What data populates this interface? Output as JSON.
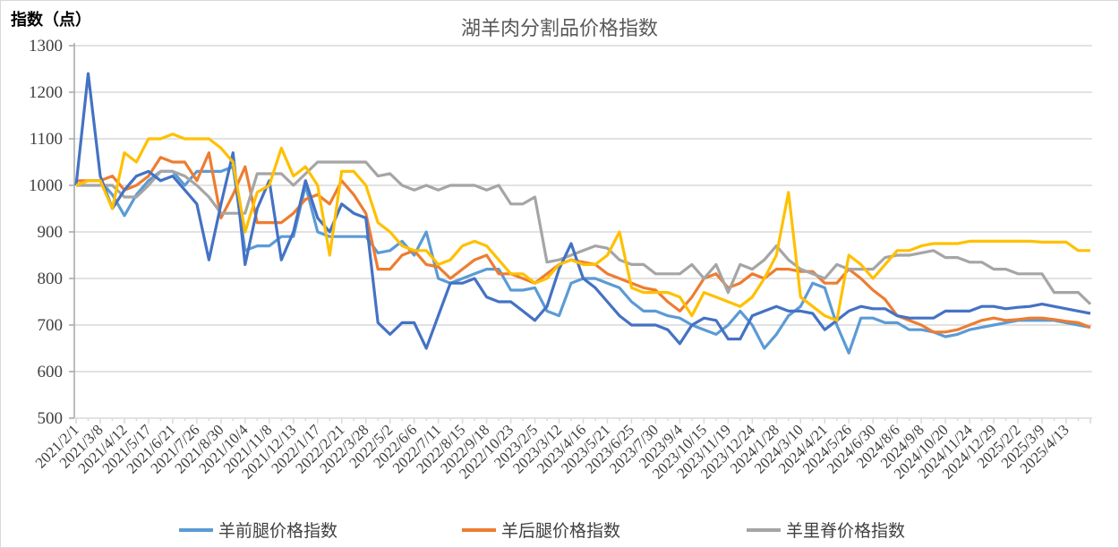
{
  "chart_data": {
    "type": "line",
    "title": "湖羊肉分割品价格指数",
    "ylabel": "指数（点）",
    "ylim": [
      500,
      1300
    ],
    "yticks": [
      500,
      600,
      700,
      800,
      900,
      1000,
      1100,
      1200,
      1300
    ],
    "grid": true,
    "legend_position": "bottom",
    "x_tick_labels": [
      "2021/2/1",
      "2021/3/8",
      "2021/4/12",
      "2021/5/17",
      "2021/6/21",
      "2021/7/26",
      "2021/8/30",
      "2021/10/4",
      "2021/11/8",
      "2021/12/13",
      "2022/1/17",
      "2022/2/21",
      "2022/3/28",
      "2022/5/2",
      "2022/6/6",
      "2022/7/11",
      "2022/8/15",
      "2022/9/18",
      "2022/10/23",
      "2023/2/5",
      "2023/3/12",
      "2023/4/16",
      "2023/5/21",
      "2023/6/25",
      "2023/7/30",
      "2023/9/4",
      "2023/10/15",
      "2023/11/19",
      "2023/12/24",
      "2024/1/28",
      "2024/3/10",
      "2024/4/21",
      "2024/5/26",
      "2024/6/30",
      "2024/8/6",
      "2024/9/8",
      "2024/10/20",
      "2024/11/24",
      "2024/12/29",
      "2025/2/2",
      "2025/3/9",
      "2025/4/13"
    ],
    "series": [
      {
        "name": "羊前腿价格指数",
        "color": "#5B9BD5",
        "in_legend": true,
        "values": [
          1000,
          1010,
          1010,
          980,
          935,
          980,
          1010,
          1030,
          1030,
          1000,
          1030,
          1030,
          1030,
          1040,
          860,
          870,
          870,
          890,
          890,
          1000,
          900,
          890,
          890,
          890,
          890,
          855,
          860,
          880,
          850,
          900,
          800,
          790,
          800,
          810,
          820,
          820,
          775,
          775,
          780,
          730,
          720,
          790,
          800,
          800,
          790,
          780,
          750,
          730,
          730,
          720,
          715,
          700,
          690,
          680,
          700,
          730,
          700,
          650,
          680,
          720,
          740,
          790,
          780,
          700,
          640,
          715,
          715,
          705,
          705,
          690,
          690,
          685,
          675,
          680,
          690,
          695,
          700,
          705,
          710,
          710,
          710,
          710,
          705,
          700,
          695
        ]
      },
      {
        "name": "羊后腿价格指数",
        "color": "#ED7D31",
        "in_legend": true,
        "values": [
          1010,
          1010,
          1010,
          1020,
          990,
          1000,
          1020,
          1060,
          1050,
          1050,
          1010,
          1070,
          930,
          980,
          1040,
          920,
          920,
          920,
          940,
          970,
          980,
          960,
          1010,
          980,
          940,
          820,
          820,
          850,
          860,
          830,
          825,
          800,
          820,
          840,
          850,
          810,
          810,
          800,
          790,
          810,
          830,
          840,
          835,
          830,
          810,
          800,
          790,
          780,
          775,
          750,
          730,
          760,
          800,
          810,
          780,
          790,
          810,
          800,
          820,
          820,
          815,
          815,
          790,
          790,
          820,
          800,
          775,
          755,
          720,
          710,
          700,
          685,
          685,
          690,
          700,
          710,
          715,
          710,
          712,
          715,
          715,
          712,
          708,
          705,
          695
        ]
      },
      {
        "name": "羊里脊价格指数",
        "color": "#A5A5A5",
        "in_legend": true,
        "values": [
          1000,
          1000,
          1000,
          1000,
          975,
          975,
          1000,
          1030,
          1030,
          1020,
          1000,
          975,
          940,
          940,
          940,
          1025,
          1025,
          1025,
          1000,
          1025,
          1050,
          1050,
          1050,
          1050,
          1050,
          1020,
          1025,
          1000,
          990,
          1000,
          990,
          1000,
          1000,
          1000,
          990,
          1000,
          960,
          960,
          975,
          835,
          840,
          850,
          860,
          870,
          865,
          840,
          830,
          830,
          810,
          810,
          810,
          830,
          800,
          830,
          770,
          830,
          820,
          840,
          870,
          840,
          820,
          810,
          800,
          830,
          820,
          820,
          820,
          845,
          850,
          850,
          855,
          860,
          845,
          845,
          835,
          835,
          820,
          820,
          810,
          810,
          810,
          770,
          770,
          770,
          745
        ]
      },
      {
        "name": "",
        "color": "#4472C4",
        "in_legend": false,
        "values": [
          1000,
          1240,
          1020,
          950,
          990,
          1020,
          1030,
          1010,
          1020,
          990,
          960,
          840,
          960,
          1070,
          830,
          950,
          1010,
          840,
          900,
          1010,
          930,
          900,
          960,
          940,
          930,
          705,
          680,
          705,
          705,
          650,
          720,
          790,
          790,
          800,
          760,
          750,
          750,
          730,
          710,
          740,
          820,
          875,
          800,
          780,
          750,
          720,
          700,
          700,
          700,
          690,
          660,
          700,
          715,
          710,
          670,
          670,
          720,
          730,
          740,
          730,
          730,
          725,
          690,
          710,
          730,
          740,
          735,
          735,
          720,
          715,
          715,
          715,
          730,
          730,
          730,
          740,
          740,
          735,
          738,
          740,
          745,
          740,
          735,
          730,
          725
        ]
      },
      {
        "name": "",
        "color": "#FFC000",
        "in_legend": false,
        "values": [
          1000,
          1010,
          1010,
          950,
          1070,
          1050,
          1100,
          1100,
          1110,
          1100,
          1100,
          1100,
          1080,
          1050,
          900,
          985,
          1000,
          1080,
          1020,
          1040,
          1000,
          850,
          1030,
          1030,
          1000,
          920,
          900,
          870,
          860,
          860,
          830,
          840,
          870,
          880,
          870,
          840,
          810,
          810,
          790,
          800,
          830,
          840,
          830,
          830,
          850,
          900,
          780,
          770,
          770,
          770,
          760,
          720,
          770,
          760,
          750,
          740,
          760,
          800,
          850,
          985,
          760,
          740,
          720,
          710,
          850,
          830,
          800,
          830,
          860,
          860,
          870,
          875,
          875,
          875,
          880,
          880,
          880,
          880,
          880,
          880,
          878,
          878,
          878,
          860,
          860
        ]
      }
    ]
  }
}
